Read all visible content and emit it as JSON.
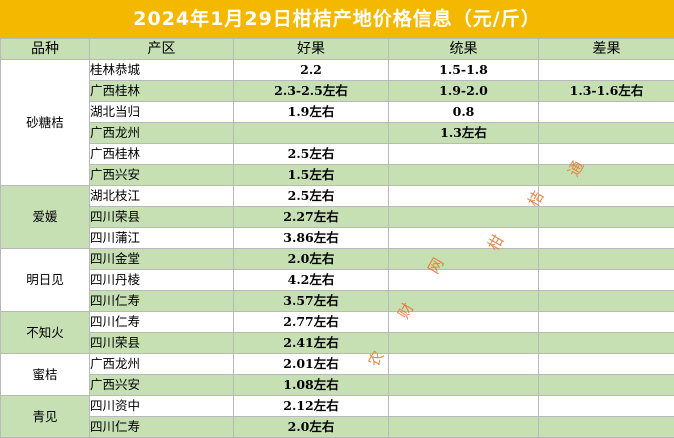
{
  "title": "2024年1月29日柑桔产地价格信息（元/斤）",
  "headers": [
    "品种",
    "产区",
    "好果",
    "统果",
    "差果"
  ],
  "varieties": [
    {
      "name": "砂糖桔",
      "rows": [
        {
          "region": "桂林恭城",
          "good": "2.2",
          "std": "1.5-1.8",
          "poor": ""
        },
        {
          "region": "广西桂林",
          "good": "2.3-2.5左右",
          "std": "1.9-2.0",
          "poor": "1.3-1.6左右"
        },
        {
          "region": "湖北当归",
          "good": "1.9左右",
          "std": "0.8",
          "poor": ""
        },
        {
          "region": "广西龙州",
          "good": "",
          "std": "1.3左右",
          "poor": ""
        },
        {
          "region": "广西桂林",
          "good": "2.5左右",
          "std": "",
          "poor": ""
        },
        {
          "region": "广西兴安",
          "good": "1.5左右",
          "std": "",
          "poor": ""
        }
      ]
    },
    {
      "name": "爱媛",
      "rows": [
        {
          "region": "湖北枝江",
          "good": "2.5左右",
          "std": "",
          "poor": ""
        },
        {
          "region": "四川荣县",
          "good": "2.27左右",
          "std": "",
          "poor": ""
        },
        {
          "region": "四川蒲江",
          "good": "3.86左右",
          "std": "",
          "poor": ""
        }
      ]
    },
    {
      "name": "明日见",
      "rows": [
        {
          "region": "四川金堂",
          "good": "2.0左右",
          "std": "",
          "poor": ""
        },
        {
          "region": "四川丹棱",
          "good": "4.2左右",
          "std": "",
          "poor": ""
        },
        {
          "region": "四川仁寿",
          "good": "3.57左右",
          "std": "",
          "poor": ""
        }
      ]
    },
    {
      "name": "不知火",
      "rows": [
        {
          "region": "四川仁寿",
          "good": "2.77左右",
          "std": "",
          "poor": ""
        },
        {
          "region": "四川荣县",
          "good": "2.41左右",
          "std": "",
          "poor": ""
        }
      ]
    },
    {
      "name": "蜜桔",
      "rows": [
        {
          "region": "广西龙州",
          "good": "2.01左右",
          "std": "",
          "poor": ""
        },
        {
          "region": "广西兴安",
          "good": "1.08左右",
          "std": "",
          "poor": ""
        }
      ]
    },
    {
      "name": "青见",
      "rows": [
        {
          "region": "四川资中",
          "good": "2.12左右",
          "std": "",
          "poor": ""
        },
        {
          "region": "四川仁寿",
          "good": "2.0左右",
          "std": "",
          "poor": ""
        }
      ]
    }
  ],
  "watermark": [
    "农",
    "财",
    "网",
    "柑",
    "桔",
    "通"
  ],
  "colors": {
    "title_bg": "#f5b800",
    "row_green": "#c6e0b4",
    "watermark": "#e8732a"
  }
}
